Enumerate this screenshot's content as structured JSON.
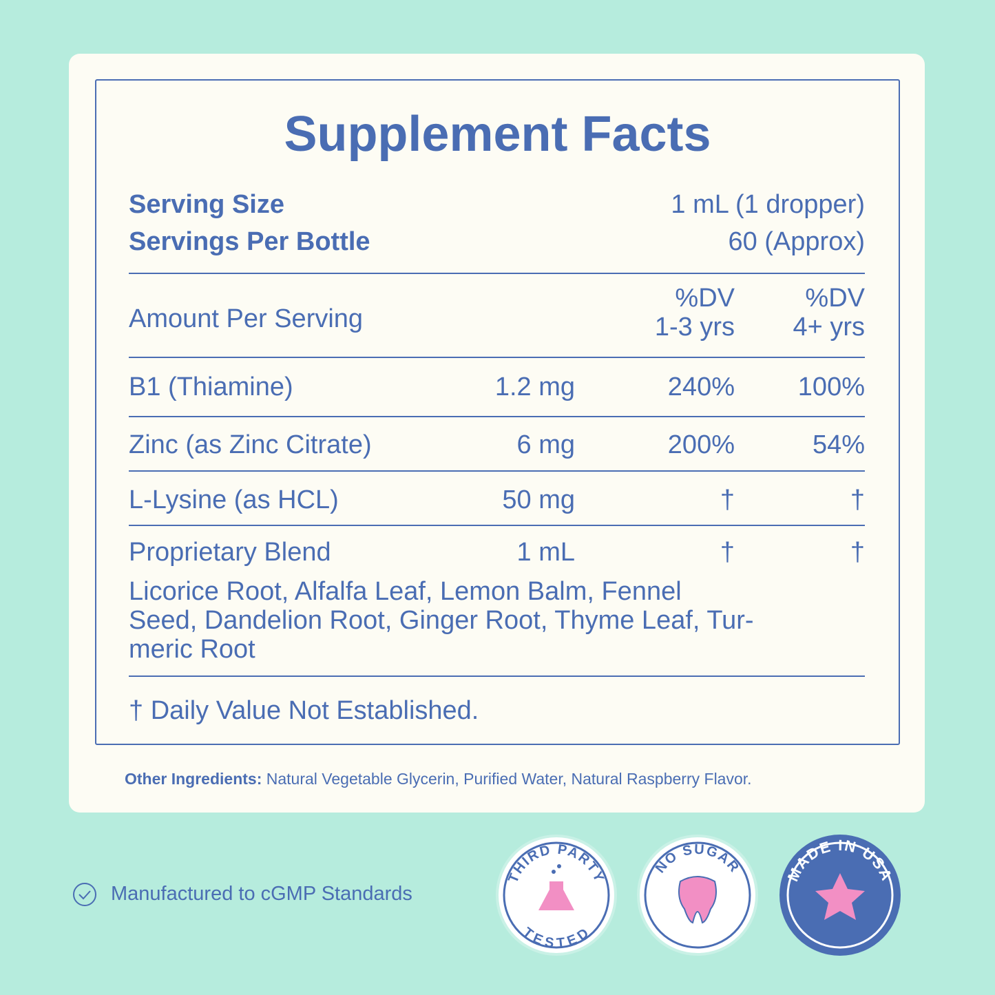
{
  "title": "Supplement Facts",
  "serving": [
    {
      "label": "Serving Size",
      "value": "1 mL (1 dropper)"
    },
    {
      "label": "Servings Per Bottle",
      "value": "60 (Approx)"
    }
  ],
  "header": {
    "label": "Amount Per Serving",
    "col1": [
      "%DV",
      "1-3 yrs"
    ],
    "col2": [
      "%DV",
      "4+ yrs"
    ]
  },
  "rows": [
    [
      "B1 (Thiamine)",
      "1.2 mg",
      "240%",
      "100%"
    ],
    [
      "Zinc (as Zinc Citrate)",
      "6 mg",
      "200%",
      "54%"
    ],
    [
      "L-Lysine (as HCL)",
      "50 mg",
      "†",
      "†"
    ],
    [
      "Proprietary Blend",
      "1 mL",
      "†",
      "†"
    ]
  ],
  "blend_lines": [
    "Licorice Root, Alfalfa Leaf, Lemon Balm, Fennel",
    "Seed, Dandelion Root, Ginger Root, Thyme Leaf, Tur-",
    "meric Root"
  ],
  "footnote": "† Daily Value Not Established.",
  "other_ingredients": {
    "label": "Other Ingredients:",
    "text": "Natural Vegetable Glycerin, Purified Water, Natural Raspberry Flavor."
  },
  "cgmp": "Manufactured to cGMP Standards",
  "badges": [
    {
      "top": "THIRD PARTY",
      "bottom": "TESTED"
    },
    {
      "top": "NO SUGAR"
    },
    {
      "top": "MADE IN USA"
    }
  ]
}
